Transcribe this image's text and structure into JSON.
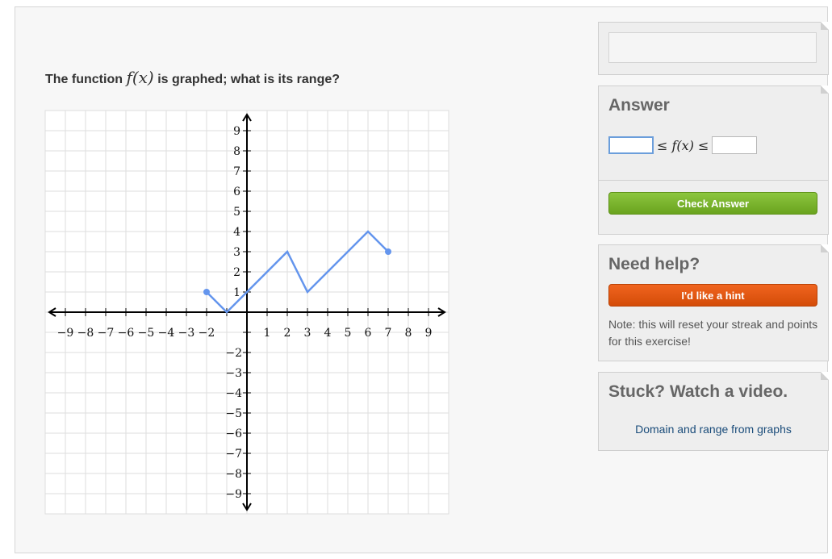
{
  "question": {
    "prefix": "The function",
    "math": "f(x)",
    "suffix": "is graphed; what is its range?"
  },
  "graph": {
    "x_ticks": [
      "−9",
      "−8",
      "−7",
      "−6",
      "−5",
      "−4",
      "−3",
      "−2",
      "1",
      "2",
      "3",
      "4",
      "5",
      "6",
      "7",
      "8",
      "9"
    ],
    "y_ticks_pos": [
      "9",
      "8",
      "7",
      "6",
      "5",
      "4",
      "3",
      "2",
      "1"
    ],
    "y_ticks_neg": [
      "−2",
      "−3",
      "−4",
      "−5",
      "−6",
      "−7",
      "−8",
      "−9"
    ],
    "line_color": "#6495ed",
    "function_points": [
      [
        -2,
        1
      ],
      [
        -1,
        0
      ],
      [
        2,
        3
      ],
      [
        3,
        1
      ],
      [
        6,
        4
      ],
      [
        7,
        3
      ]
    ],
    "endpoints": [
      [
        -2,
        1
      ],
      [
        7,
        3
      ]
    ]
  },
  "answer_card": {
    "title": "Answer",
    "lower_value": "",
    "upper_value": "",
    "inequality_left": "≤",
    "inequality_func": "f(x)",
    "inequality_right": "≤"
  },
  "check_button": {
    "label": "Check Answer",
    "color": "#7bb52c"
  },
  "help_card": {
    "title": "Need help?",
    "hint_label": "I'd like a hint",
    "hint_color": "#e45a12",
    "note": "Note: this will reset your streak and points for this exercise!"
  },
  "video_card": {
    "title": "Stuck? Watch a video.",
    "link": "Domain and range from graphs"
  }
}
